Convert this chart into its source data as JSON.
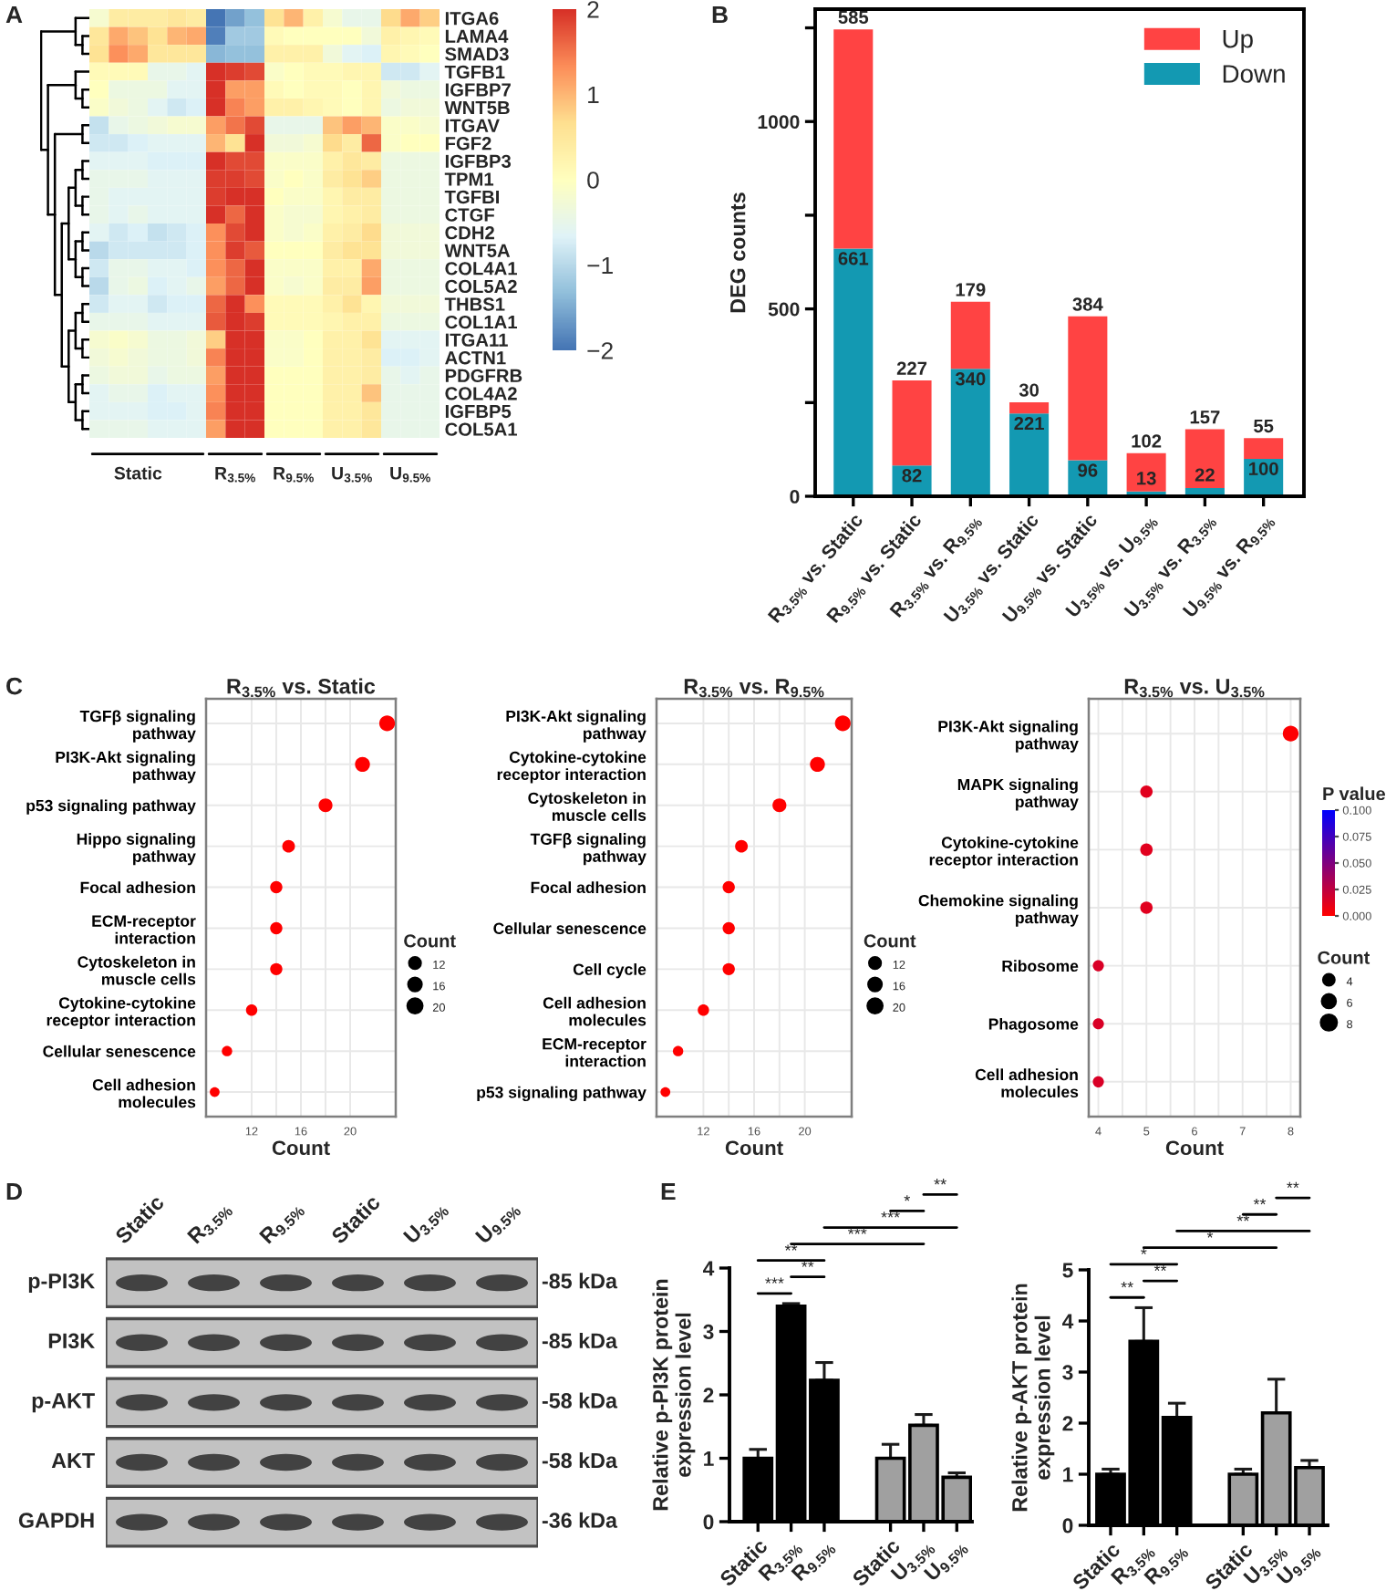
{
  "chart_data": [
    {
      "type": "heatmap",
      "categories": [
        null,
        null,
        "Static",
        null,
        null,
        null,
        null,
        "R$_{3.5%}$",
        null,
        null,
        "R$_{9.5%}$",
        null,
        null,
        "U$_{3.5%}$",
        null,
        null,
        "U$_{9.5%}$",
        null
      ],
      "y_categories": [
        "ITGA6",
        "LAMA4",
        "SMAD3",
        "TGFB1",
        "IGFBP7",
        "WNT5B",
        "ITGAV",
        "FGF2",
        "IGFBP3",
        "TPM1",
        "TGFBI",
        "CTGF",
        "CDH2",
        "WNT5A",
        "COL4A1",
        "COL5A2",
        "THBS1",
        "COL1A1",
        "ITGA11",
        "ACTN1",
        "PDGFRB",
        "COL4A2",
        "IGFBP5",
        "COL5A1"
      ],
      "cells": [
        [
          -0.2,
          0.4,
          0.4,
          0.4,
          0.5,
          0.4,
          -2.0,
          -1.6,
          -1.3,
          0.6,
          1.0,
          0.3,
          -0.2,
          -0.5,
          -0.5,
          0.7,
          1.1,
          0.8
        ],
        [
          0.5,
          1.1,
          0.9,
          0.6,
          1.0,
          1.1,
          -1.9,
          -1.2,
          -1.2,
          0.1,
          0.0,
          0.0,
          0.0,
          0.0,
          -0.3,
          0.3,
          0.2,
          0.1
        ],
        [
          0.6,
          1.3,
          1.1,
          0.5,
          0.5,
          0.5,
          -1.4,
          -1.3,
          -1.3,
          0.3,
          0.3,
          0.3,
          -0.3,
          -0.6,
          -0.7,
          0.2,
          0.1,
          0.0
        ],
        [
          0.1,
          0.1,
          0.1,
          -0.5,
          -0.5,
          -0.6,
          2.0,
          1.9,
          1.8,
          -0.1,
          0.0,
          0.1,
          0.1,
          0.2,
          0.2,
          -0.8,
          -0.8,
          -0.6
        ],
        [
          0.0,
          -0.4,
          -0.4,
          -0.4,
          -0.6,
          -0.6,
          2.0,
          1.2,
          1.2,
          0.1,
          0.0,
          0.1,
          0.1,
          0.0,
          0.2,
          -0.3,
          -0.4,
          -0.4
        ],
        [
          -0.1,
          -0.3,
          -0.4,
          -0.6,
          -0.8,
          -0.7,
          2.0,
          1.4,
          1.2,
          0.3,
          0.3,
          0.2,
          0.1,
          0.0,
          0.2,
          -0.4,
          -0.3,
          -0.3
        ],
        [
          -0.9,
          -0.5,
          -0.4,
          -0.3,
          -0.2,
          -0.2,
          1.2,
          1.5,
          1.8,
          -0.5,
          -0.5,
          -0.5,
          0.9,
          1.2,
          1.0,
          -0.1,
          -0.1,
          -0.2
        ],
        [
          -0.8,
          -0.8,
          -0.7,
          -0.6,
          -0.6,
          -0.6,
          1.0,
          0.6,
          2.0,
          -0.3,
          -0.3,
          -0.2,
          0.7,
          0.4,
          1.6,
          -0.1,
          0.0,
          0.0
        ],
        [
          -0.6,
          -0.6,
          -0.6,
          -0.7,
          -0.7,
          -0.7,
          2.0,
          1.8,
          1.8,
          -0.1,
          -0.1,
          -0.1,
          0.3,
          0.5,
          0.4,
          -0.4,
          -0.4,
          -0.4
        ],
        [
          -0.5,
          -0.5,
          -0.5,
          -0.6,
          -0.6,
          -0.6,
          1.9,
          1.9,
          1.8,
          -0.1,
          0.0,
          -0.1,
          0.4,
          0.6,
          0.8,
          -0.4,
          -0.4,
          -0.4
        ],
        [
          -0.5,
          -0.6,
          -0.6,
          -0.6,
          -0.6,
          -0.6,
          1.9,
          2.0,
          2.0,
          0.0,
          -0.1,
          -0.1,
          0.2,
          0.4,
          0.4,
          -0.4,
          -0.4,
          -0.4
        ],
        [
          -0.5,
          -0.6,
          -0.5,
          -0.6,
          -0.6,
          -0.6,
          2.0,
          1.6,
          2.0,
          -0.1,
          -0.2,
          -0.2,
          0.2,
          0.3,
          0.4,
          -0.4,
          -0.4,
          -0.4
        ],
        [
          -0.6,
          -0.8,
          -0.7,
          -0.9,
          -0.8,
          -0.7,
          1.3,
          1.8,
          2.0,
          -0.1,
          -0.2,
          -0.1,
          0.3,
          0.4,
          0.7,
          -0.3,
          -0.3,
          -0.3
        ],
        [
          -1.0,
          -0.8,
          -0.8,
          -0.8,
          -0.8,
          -0.7,
          1.3,
          1.9,
          1.7,
          0.0,
          0.0,
          0.0,
          0.4,
          0.6,
          0.6,
          -0.3,
          -0.3,
          -0.3
        ],
        [
          -0.8,
          -0.5,
          -0.5,
          -0.6,
          -0.6,
          -0.7,
          1.3,
          1.6,
          2.0,
          -0.1,
          -0.1,
          -0.1,
          0.3,
          0.3,
          1.1,
          -0.4,
          -0.4,
          -0.4
        ],
        [
          -1.0,
          -0.5,
          -0.4,
          -0.7,
          -0.6,
          -0.5,
          1.2,
          1.6,
          2.0,
          -0.1,
          -0.2,
          -0.1,
          0.4,
          0.4,
          1.2,
          -0.4,
          -0.4,
          -0.4
        ],
        [
          -0.8,
          -0.6,
          -0.6,
          -0.8,
          -0.7,
          -0.7,
          1.6,
          2.0,
          1.3,
          0.1,
          0.1,
          0.1,
          0.3,
          0.6,
          0.2,
          -0.3,
          -0.3,
          -0.3
        ],
        [
          -0.5,
          -0.5,
          -0.5,
          -0.6,
          -0.6,
          -0.6,
          1.7,
          2.0,
          1.9,
          0.1,
          0.1,
          0.1,
          0.2,
          0.3,
          0.3,
          -0.4,
          -0.4,
          -0.4
        ],
        [
          -0.2,
          -0.1,
          -0.2,
          -0.4,
          -0.4,
          -0.3,
          0.8,
          2.0,
          2.0,
          -0.1,
          -0.1,
          0.0,
          0.3,
          0.3,
          0.6,
          -0.6,
          -0.6,
          -0.6
        ],
        [
          -0.3,
          -0.2,
          -0.3,
          -0.4,
          -0.4,
          -0.3,
          1.4,
          2.0,
          2.0,
          -0.1,
          -0.1,
          0.0,
          0.3,
          0.3,
          0.4,
          -0.7,
          -0.7,
          -0.6
        ],
        [
          -0.4,
          -0.3,
          -0.3,
          -0.5,
          -0.4,
          -0.4,
          1.2,
          2.0,
          2.0,
          0.0,
          0.0,
          0.0,
          0.3,
          0.3,
          0.4,
          -0.5,
          -0.6,
          -0.5
        ],
        [
          -0.6,
          -0.5,
          -0.5,
          -0.7,
          -0.6,
          -0.6,
          1.3,
          2.0,
          2.0,
          0.0,
          0.0,
          0.0,
          0.3,
          0.3,
          0.9,
          -0.5,
          -0.5,
          -0.5
        ],
        [
          -0.6,
          -0.6,
          -0.6,
          -0.7,
          -0.7,
          -0.6,
          1.4,
          2.0,
          2.0,
          0.0,
          0.0,
          0.0,
          0.3,
          0.3,
          0.5,
          -0.5,
          -0.5,
          -0.5
        ],
        [
          -0.5,
          -0.5,
          -0.5,
          -0.6,
          -0.6,
          -0.6,
          1.2,
          2.0,
          2.0,
          0.0,
          0.0,
          0.0,
          0.3,
          0.3,
          0.5,
          -0.5,
          -0.5,
          -0.5
        ]
      ],
      "clim": [
        -2,
        2
      ],
      "cticks": [
        {
          "value": -2,
          "label": "−2"
        },
        {
          "value": -1,
          "label": "−1"
        },
        0,
        1,
        2
      ],
      "annotations": [
        "A"
      ]
    },
    {
      "type": "bar",
      "stacked": true,
      "categories": [
        "R$_{3.5%}$ vs. Static",
        "R$_{9.5%}$ vs. Static",
        "R$_{3.5%}$ vs. R$_{9.5%}$",
        "U$_{3.5%}$ vs. Static",
        "U$_{9.5%}$ vs. Static",
        "U$_{3.5%}$ vs. U$_{9.5%}$",
        "U$_{3.5%}$ vs. R$_{3.5%}$",
        "U$_{9.5%}$ vs. R$_{9.5%}$"
      ],
      "series": [
        {
          "name": "Down",
          "color": "#1399b2",
          "values": [
            661,
            82,
            340,
            221,
            96,
            13,
            22,
            100
          ]
        },
        {
          "name": "Up",
          "color": "#ff4343",
          "values": [
            585,
            227,
            179,
            30,
            384,
            102,
            157,
            55
          ]
        }
      ],
      "ylabel": "DEG counts",
      "ylim": [
        0,
        1300
      ],
      "yticks": [
        0,
        {
          "value": 250,
          "label": null
        },
        500,
        {
          "value": 750,
          "label": null
        },
        1000,
        {
          "value": 1250,
          "label": null
        }
      ],
      "data_labels": true,
      "legend": "top right",
      "annotations": [
        "B"
      ]
    },
    {
      "type": "bubble",
      "orientation": "horizontal",
      "title": "R$_{3.5%}$ vs. Static",
      "xlabel": "Count",
      "categories": [
        "TGFβ signaling\npathway",
        "PI3K-Akt signaling\npathway",
        "p53 signaling pathway",
        "Hippo signaling\npathway",
        "Focal adhesion",
        "ECM-receptor\ninteraction",
        "Cytoskeleton in\nmuscle cells",
        "Cytokine-cytokine\nreceptor interaction",
        "Cellular senescence",
        "Cell adhesion\nmolecules"
      ],
      "values": [
        23,
        21,
        18,
        15,
        14,
        14,
        14,
        12,
        10,
        9
      ],
      "sizes": [
        23,
        21,
        18,
        15,
        14,
        14,
        14,
        12,
        10,
        9
      ],
      "size_legend": [
        12,
        16,
        20
      ],
      "legend_title": "Count",
      "color": "#ff0000",
      "xlim": [
        8.3,
        23.7
      ],
      "xticks": [
        12,
        16,
        20
      ],
      "grid": true,
      "annotations": [
        "C"
      ]
    },
    {
      "type": "bubble",
      "orientation": "horizontal",
      "title": "R$_{3.5%}$ vs. R$_{9.5%}$",
      "xlabel": "Count",
      "categories": [
        "PI3K-Akt signaling\npathway",
        "Cytokine-cytokine\nreceptor interaction",
        "Cytoskeleton in\nmuscle cells",
        "TGFβ signaling\npathway",
        "Focal adhesion",
        "Cellular senescence",
        "Cell cycle",
        "Cell adhesion\nmolecules",
        "ECM-receptor\ninteraction",
        "p53 signaling pathway"
      ],
      "values": [
        23,
        21,
        18,
        15,
        14,
        14,
        14,
        12,
        10,
        9
      ],
      "sizes": [
        23,
        21,
        18,
        15,
        14,
        14,
        14,
        12,
        10,
        9
      ],
      "size_legend": [
        12,
        16,
        20
      ],
      "legend_title": "Count",
      "color": "#ff0000",
      "xlim": [
        8.3,
        23.7
      ],
      "xticks": [
        12,
        16,
        20
      ],
      "grid": true
    },
    {
      "type": "bubble",
      "orientation": "horizontal",
      "title": "R$_{3.5%}$ vs. U$_{3.5%}$",
      "xlabel": "Count",
      "categories": [
        "PI3K-Akt signaling\npathway",
        "MAPK signaling\npathway",
        "Cytokine-cytokine\nreceptor interaction",
        "Chemokine signaling\npathway",
        "Ribosome",
        "Phagosome",
        "Cell adhesion\nmolecules"
      ],
      "values": [
        8,
        5,
        5,
        5,
        4,
        4,
        4
      ],
      "sizes": [
        8,
        5,
        5,
        5,
        4,
        4,
        4
      ],
      "cvalues": [
        0.001,
        0.012,
        0.012,
        0.012,
        0.015,
        0.015,
        0.015
      ],
      "clim": [
        0,
        0.1
      ],
      "cticks": [
        {
          "value": 0,
          "label": "0.000"
        },
        {
          "value": 0.025,
          "label": "0.025"
        },
        {
          "value": 0.05,
          "label": "0.050"
        },
        {
          "value": 0.075,
          "label": "0.075"
        },
        {
          "value": 0.1,
          "label": "0.100"
        }
      ],
      "clabel": "P value",
      "size_legend": [
        4,
        6,
        8
      ],
      "legend_title": "Count",
      "xlim": [
        3.8,
        8.2
      ],
      "xticks": [
        4,
        5,
        6,
        7,
        8
      ],
      "grid": true
    },
    {
      "type": "other",
      "categories": [
        "Static",
        "R$_{3.5%}$",
        "R$_{9.5%}$",
        "Static",
        "U$_{3.5%}$",
        "U$_{9.5%}$"
      ],
      "y_categories": [
        "p-PI3K",
        "PI3K",
        "p-AKT",
        "AKT",
        "GAPDH"
      ],
      "y2_categories": [
        "-85 kDa",
        "-85 kDa",
        "-58 kDa",
        "-58 kDa",
        "-36 kDa"
      ],
      "annotations": [
        "D"
      ]
    },
    {
      "type": "bar",
      "categories": [
        "Static",
        "R$_{3.5%}$",
        "R$_{9.5%}$",
        null,
        "Static",
        "U$_{3.5%}$",
        "U$_{9.5%}$"
      ],
      "series": [
        {
          "color": "#000000",
          "values": [
            1.0,
            3.4,
            2.23,
            null,
            null,
            null,
            null
          ],
          "errors": [
            [
              1.0,
              1.14
            ],
            [
              3.4,
              3.44
            ],
            [
              2.23,
              2.51
            ],
            null,
            null,
            null,
            null
          ]
        },
        {
          "color": "#a0a0a0",
          "values": [
            null,
            null,
            null,
            null,
            1.0,
            1.52,
            0.7
          ],
          "errors": [
            null,
            null,
            null,
            null,
            [
              1.0,
              1.22
            ],
            [
              1.52,
              1.69
            ],
            [
              0.7,
              0.77
            ]
          ]
        }
      ],
      "ylabel": "Relative p-PI3K protein\nexpression level",
      "ylim": [
        0,
        4
      ],
      "yticks": [
        0,
        1,
        2,
        3,
        4
      ],
      "annotations": [
        "E",
        "***",
        "**",
        "**",
        "***",
        "***",
        "*",
        "**"
      ]
    },
    {
      "type": "bar",
      "categories": [
        "Static",
        "R$_{3.5%}$",
        "R$_{9.5%}$",
        null,
        "Static",
        "U$_{3.5%}$",
        "U$_{9.5%}$"
      ],
      "series": [
        {
          "color": "#000000",
          "values": [
            1.0,
            3.6,
            2.11,
            null,
            null,
            null,
            null
          ],
          "errors": [
            [
              1.0,
              1.1
            ],
            [
              3.6,
              4.26
            ],
            [
              2.11,
              2.39
            ],
            null,
            null,
            null,
            null
          ]
        },
        {
          "color": "#a0a0a0",
          "values": [
            null,
            null,
            null,
            null,
            1.0,
            2.2,
            1.13
          ],
          "errors": [
            null,
            null,
            null,
            null,
            [
              1.0,
              1.1
            ],
            [
              2.2,
              2.86
            ],
            [
              1.13,
              1.27
            ]
          ]
        }
      ],
      "ylabel": "Relative p-AKT protein\nexpression level",
      "ylim": [
        0,
        5
      ],
      "yticks": [
        0,
        1,
        2,
        3,
        4,
        5
      ],
      "annotations": [
        "**",
        "**",
        "*",
        "*",
        "**",
        "**",
        "**"
      ]
    }
  ]
}
